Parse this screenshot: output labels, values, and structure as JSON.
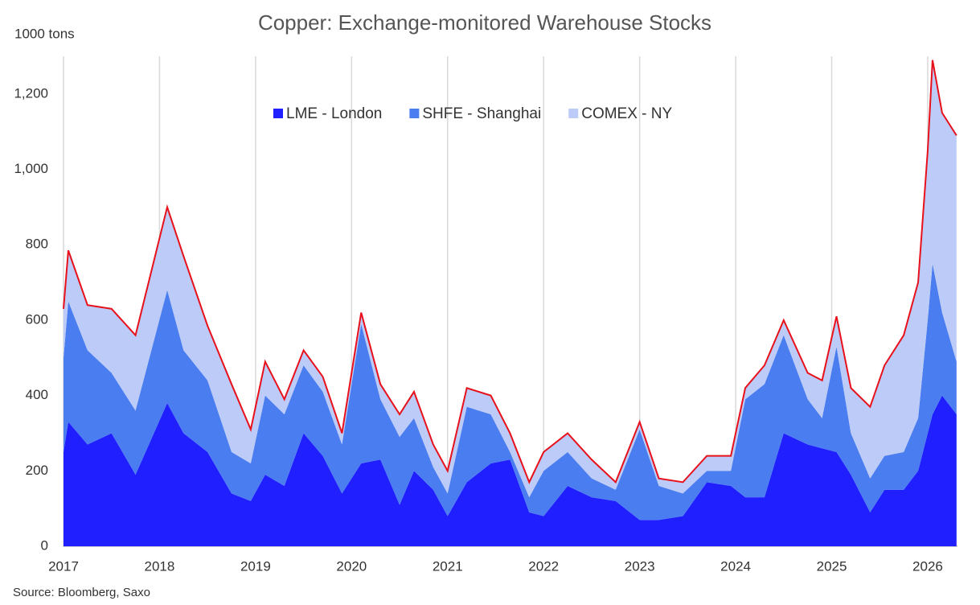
{
  "chart_data": {
    "type": "stacked-area",
    "title": "Copper: Exchange-monitored Warehouse Stocks",
    "y_label": "1000 tons",
    "source": "Source: Bloomberg, Saxo",
    "x": [
      2017.0,
      2017.05,
      2017.25,
      2017.5,
      2017.75,
      2018.08,
      2018.25,
      2018.5,
      2018.75,
      2018.95,
      2019.1,
      2019.3,
      2019.5,
      2019.7,
      2019.9,
      2020.1,
      2020.3,
      2020.5,
      2020.65,
      2020.85,
      2021.0,
      2021.2,
      2021.45,
      2021.65,
      2021.85,
      2022.0,
      2022.25,
      2022.5,
      2022.75,
      2023.0,
      2023.2,
      2023.45,
      2023.7,
      2023.95,
      2024.1,
      2024.3,
      2024.5,
      2024.75,
      2024.9,
      2025.05,
      2025.2,
      2025.4,
      2025.55,
      2025.75,
      2025.9,
      2026.0,
      2026.05,
      2026.15,
      2026.3
    ],
    "series": [
      {
        "name": "LME - London",
        "color": "#1f1fff",
        "values": [
          250,
          330,
          270,
          300,
          190,
          380,
          300,
          250,
          140,
          120,
          190,
          160,
          300,
          240,
          140,
          220,
          230,
          110,
          200,
          150,
          80,
          170,
          220,
          230,
          90,
          80,
          160,
          130,
          120,
          70,
          70,
          80,
          170,
          160,
          130,
          130,
          300,
          270,
          260,
          250,
          190,
          90,
          150,
          150,
          200,
          300,
          350,
          400,
          350
        ]
      },
      {
        "name": "SHFE - Shanghai",
        "color": "#4a7df0",
        "values": [
          250,
          320,
          250,
          160,
          170,
          300,
          220,
          190,
          110,
          100,
          210,
          190,
          180,
          170,
          130,
          370,
          160,
          180,
          140,
          60,
          60,
          200,
          130,
          20,
          40,
          120,
          90,
          50,
          30,
          240,
          90,
          60,
          30,
          40,
          260,
          300,
          260,
          120,
          80,
          280,
          110,
          90,
          90,
          100,
          140,
          300,
          400,
          220,
          140
        ]
      },
      {
        "name": "COMEX - NY",
        "color": "#bccbf7",
        "values": [
          130,
          135,
          120,
          170,
          200,
          220,
          250,
          145,
          180,
          90,
          90,
          40,
          40,
          40,
          30,
          30,
          40,
          60,
          70,
          60,
          60,
          50,
          50,
          50,
          40,
          50,
          50,
          50,
          20,
          20,
          20,
          30,
          40,
          40,
          30,
          50,
          40,
          70,
          100,
          80,
          120,
          190,
          240,
          310,
          360,
          450,
          540,
          530,
          600
        ]
      }
    ],
    "total_line_color": "#e8101a",
    "xlim": [
      2017,
      2026.31
    ],
    "xticks": [
      2017,
      2018,
      2019,
      2020,
      2021,
      2022,
      2023,
      2024,
      2025,
      2026
    ],
    "ylim": [
      0,
      1300
    ],
    "yticks": [
      0,
      200,
      400,
      600,
      800,
      {
        "value": 1000,
        "label": "1,000"
      },
      {
        "value": 1200,
        "label": "1,200"
      }
    ],
    "grid": "x"
  }
}
